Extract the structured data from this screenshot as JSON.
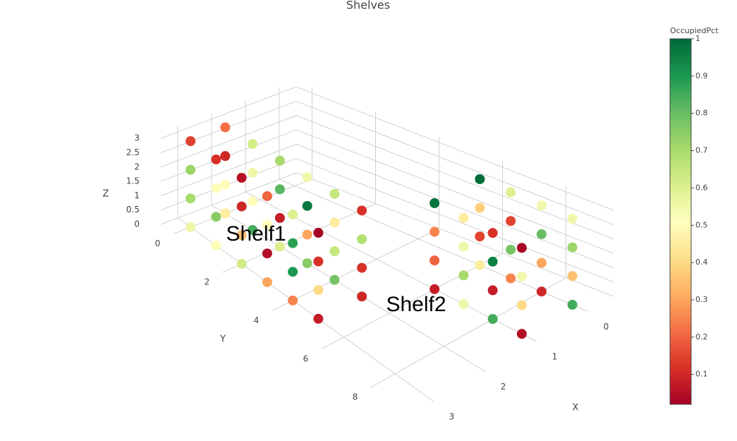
{
  "chart_data": {
    "type": "scatter3d",
    "title": "Shelves",
    "x": [
      3,
      3,
      3,
      3,
      3,
      3,
      2,
      2,
      2,
      2,
      2,
      2,
      3,
      3,
      3,
      3,
      3,
      3,
      2,
      2,
      2,
      2,
      2,
      2,
      3,
      3,
      3,
      3,
      3,
      3,
      2,
      2,
      2,
      2,
      2,
      2,
      3,
      3,
      3,
      3,
      3,
      3,
      2,
      2,
      2,
      2,
      2,
      2,
      1,
      1,
      1,
      1,
      0,
      0,
      0,
      0,
      1,
      1,
      1,
      1,
      0,
      0,
      0,
      0,
      1,
      1,
      1,
      1,
      0,
      0,
      0,
      0,
      1,
      1,
      1,
      1,
      0,
      0,
      0,
      0
    ],
    "y": [
      0,
      1,
      2,
      3,
      4,
      5,
      0,
      1,
      2,
      3,
      4,
      5,
      0,
      1,
      2,
      3,
      4,
      5,
      0,
      1,
      2,
      3,
      4,
      5,
      0,
      1,
      2,
      3,
      4,
      5,
      0,
      1,
      2,
      3,
      4,
      5,
      0,
      1,
      2,
      3,
      4,
      5,
      0,
      1,
      2,
      3,
      4,
      5,
      6,
      7,
      8,
      9,
      6,
      7,
      8,
      9,
      6,
      7,
      8,
      9,
      6,
      7,
      8,
      9,
      6,
      7,
      8,
      9,
      6,
      7,
      8,
      9,
      6,
      7,
      8,
      9,
      6,
      7,
      8,
      9
    ],
    "z": [
      0,
      0,
      0,
      0,
      0,
      0,
      0,
      0,
      0,
      0,
      0,
      0,
      1,
      1,
      1,
      1,
      1,
      1,
      1,
      1,
      1,
      1,
      1,
      1,
      2,
      2,
      2,
      2,
      2,
      2,
      2,
      2,
      2,
      2,
      2,
      2,
      3,
      3,
      3,
      3,
      3,
      3,
      3,
      3,
      3,
      3,
      3,
      3,
      0,
      0,
      0,
      0,
      0,
      0,
      0,
      0,
      1,
      1,
      1,
      1,
      1,
      1,
      1,
      1,
      2,
      2,
      2,
      2,
      2,
      2,
      2,
      2,
      3,
      3,
      3,
      3,
      3,
      3,
      3,
      3
    ],
    "values": [
      0.55,
      0.5,
      0.62,
      0.3,
      0.25,
      0.08,
      0.45,
      0.85,
      0.6,
      0.75,
      0.78,
      0.1,
      0.7,
      0.75,
      0.35,
      0.05,
      0.9,
      0.4,
      0.5,
      0.5,
      0.08,
      0.3,
      0.65,
      0.12,
      0.72,
      0.5,
      0.1,
      0.5,
      0.88,
      0.12,
      0.1,
      0.55,
      0.82,
      0.97,
      0.45,
      0.68,
      0.15,
      0.12,
      0.05,
      0.2,
      0.6,
      0.02,
      0.22,
      0.62,
      0.7,
      0.55,
      0.65,
      0.12,
      0.08,
      0.55,
      0.85,
      0.05,
      0.45,
      0.25,
      0.1,
      0.85,
      0.2,
      0.7,
      0.08,
      0.4,
      0.15,
      0.78,
      0.3,
      0.35,
      0.25,
      0.55,
      0.95,
      0.55,
      0.38,
      0.15,
      0.8,
      0.72,
      0.98,
      0.45,
      0.12,
      0.03,
      0.99,
      0.6,
      0.55,
      0.55
    ],
    "x_label": "X",
    "y_label": "Y",
    "z_label": "Z",
    "xlim": [
      -0.5,
      3.5
    ],
    "ylim": [
      -0.5,
      9.5
    ],
    "zlim": [
      0,
      3.2
    ],
    "xticks": [
      0,
      1,
      2,
      3
    ],
    "yticks": [
      0,
      2,
      4,
      6,
      8
    ],
    "zticks": [
      0,
      0.5,
      1,
      1.5,
      2,
      2.5,
      3
    ],
    "colorbar_title": "OccupiedPct",
    "clim": [
      0.02,
      1
    ],
    "cticks": [
      0.1,
      0.2,
      0.3,
      0.4,
      0.5,
      0.6,
      0.7,
      0.8,
      0.9,
      1
    ],
    "colorscale": [
      [
        0,
        "#a50026"
      ],
      [
        0.1,
        "#d73027"
      ],
      [
        0.2,
        "#f46d43"
      ],
      [
        0.3,
        "#fdae61"
      ],
      [
        0.4,
        "#fee08b"
      ],
      [
        0.5,
        "#ffffbf"
      ],
      [
        0.6,
        "#d9ef8b"
      ],
      [
        0.7,
        "#a6d96a"
      ],
      [
        0.8,
        "#66bd63"
      ],
      [
        0.9,
        "#1a9850"
      ],
      [
        1,
        "#006837"
      ]
    ],
    "annotations": [
      "Shelf1",
      "Shelf2"
    ],
    "grid": true
  }
}
